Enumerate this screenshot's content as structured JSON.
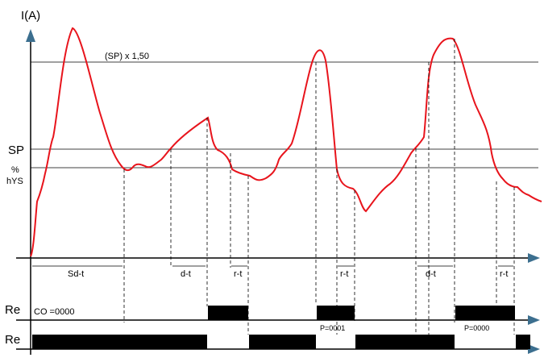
{
  "axis": {
    "y_label": "I(A)",
    "thresholds": {
      "overload": "(SP) x 1,50",
      "sp": "SP",
      "hys_line1": "%",
      "hys_line2": "hYS"
    }
  },
  "intervals": {
    "sd_t": "Sd-t",
    "d_t_1": "d-t",
    "r_t_1": "r-t",
    "r_t_2": "r-t",
    "d_t_2": "d-t",
    "r_t_3": "r-t"
  },
  "relays": {
    "row1_label": "Re",
    "row1_mode": "CO =0000",
    "row2_label": "Re",
    "pulse_1": "P=0001",
    "pulse_2": "P=0000"
  },
  "colors": {
    "curve": "#e8141c",
    "axis_arrow": "#3c6f8f",
    "line": "#000000",
    "fill": "#000000"
  }
}
